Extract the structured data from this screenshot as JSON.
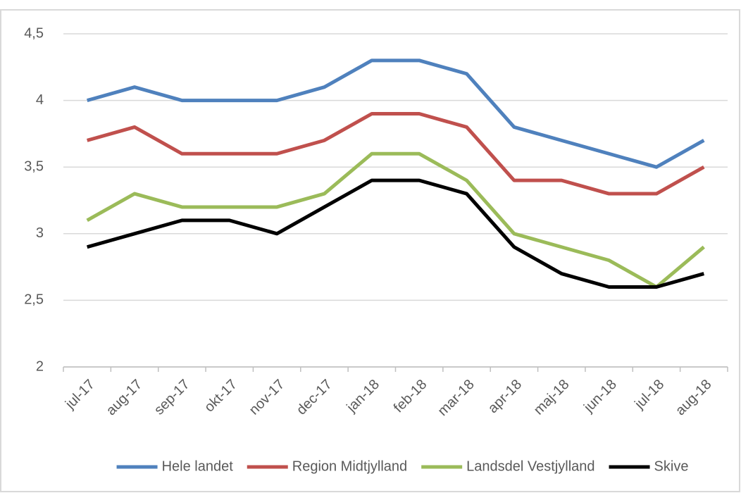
{
  "chart_data": {
    "type": "line",
    "categories": [
      "jul-17",
      "aug-17",
      "sep-17",
      "okt-17",
      "nov-17",
      "dec-17",
      "jan-18",
      "feb-18",
      "mar-18",
      "apr-18",
      "maj-18",
      "jun-18",
      "jul-18",
      "aug-18"
    ],
    "series": [
      {
        "name": "Hele landet",
        "color": "#4f81bd",
        "values": [
          4.0,
          4.1,
          4.0,
          4.0,
          4.0,
          4.1,
          4.3,
          4.3,
          4.2,
          3.8,
          3.7,
          3.6,
          3.5,
          3.7
        ]
      },
      {
        "name": "Region Midtjylland",
        "color": "#c0504d",
        "values": [
          3.7,
          3.8,
          3.6,
          3.6,
          3.6,
          3.7,
          3.9,
          3.9,
          3.8,
          3.4,
          3.4,
          3.3,
          3.3,
          3.5
        ]
      },
      {
        "name": "Landsdel Vestjylland",
        "color": "#9bbb59",
        "values": [
          3.1,
          3.3,
          3.2,
          3.2,
          3.2,
          3.3,
          3.6,
          3.6,
          3.4,
          3.0,
          2.9,
          2.8,
          2.6,
          2.9
        ]
      },
      {
        "name": "Skive",
        "color": "#000000",
        "values": [
          2.9,
          3.0,
          3.1,
          3.1,
          3.0,
          3.2,
          3.4,
          3.4,
          3.3,
          2.9,
          2.7,
          2.6,
          2.6,
          2.7
        ]
      }
    ],
    "ylim": [
      2,
      4.5
    ],
    "yticks": [
      2,
      {
        "value": 2.5,
        "label": "2,5"
      },
      3,
      {
        "value": 3.5,
        "label": "3,5"
      },
      4,
      {
        "value": 4.5,
        "label": "4,5"
      }
    ],
    "grid": true,
    "legend": "bottom"
  }
}
